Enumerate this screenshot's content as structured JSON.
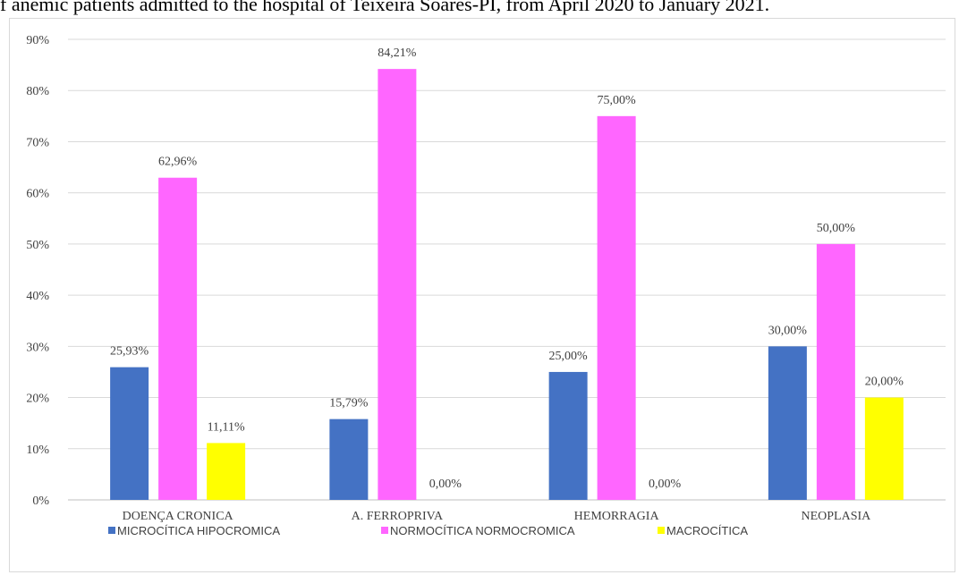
{
  "caption": "f anemic patients admitted to the hospital of Teixeira Soares-PI, from April 2020 to January 2021.",
  "chart_data": {
    "type": "bar",
    "title": "",
    "xlabel": "",
    "ylabel": "",
    "ylim": [
      0,
      90
    ],
    "yticks": [
      "0%",
      "10%",
      "20%",
      "30%",
      "40%",
      "50%",
      "60%",
      "70%",
      "80%",
      "90%"
    ],
    "grid": true,
    "legend_position": "bottom",
    "categories": [
      "DOENÇA CRONICA",
      "A. FERROPRIVA",
      "HEMORRAGIA",
      "NEOPLASIA"
    ],
    "series": [
      {
        "name": "MICROCÍTICA HIPOCROMICA",
        "color": "#4472c4",
        "values": [
          25.93,
          15.79,
          25.0,
          30.0
        ],
        "labels": [
          "25,93%",
          "15,79%",
          "25,00%",
          "30,00%"
        ]
      },
      {
        "name": "NORMOCÍTICA NORMOCROMICA",
        "color": "#ff66ff",
        "values": [
          62.96,
          84.21,
          75.0,
          50.0
        ],
        "labels": [
          "62,96%",
          "84,21%",
          "75,00%",
          "50,00%"
        ]
      },
      {
        "name": "MACROCÍTICA",
        "color": "#ffff00",
        "values": [
          11.11,
          0.0,
          0.0,
          20.0
        ],
        "labels": [
          "11,11%",
          "0,00%",
          "0,00%",
          "20,00%"
        ]
      }
    ]
  }
}
